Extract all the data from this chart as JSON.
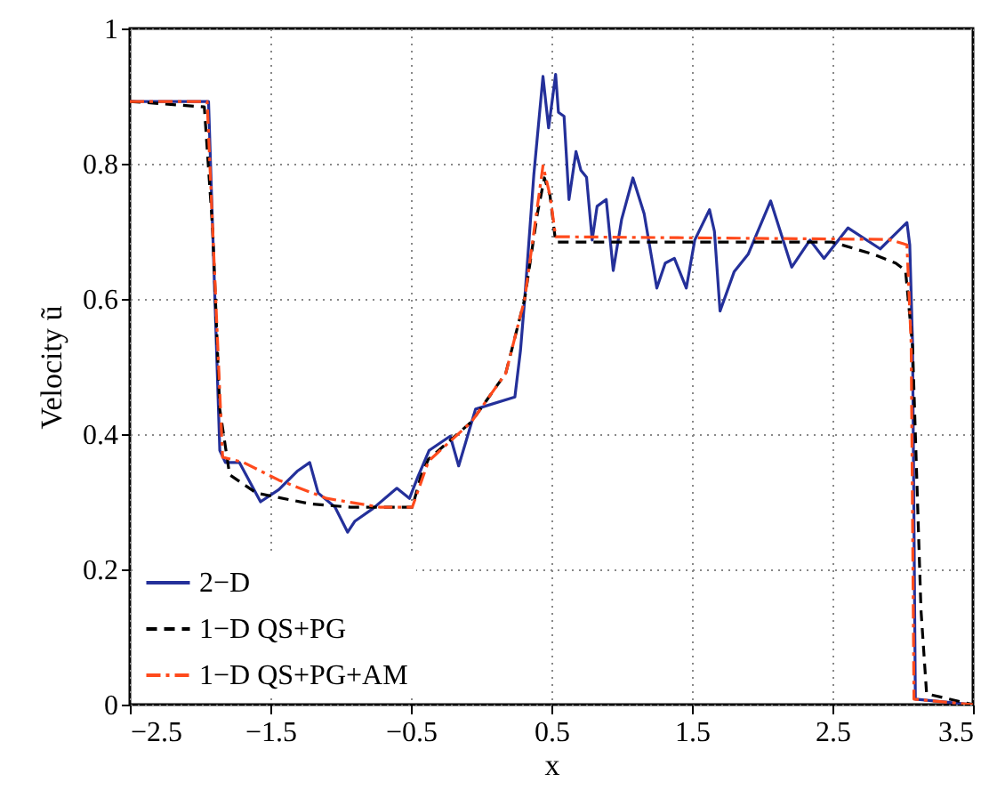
{
  "chart_data": {
    "type": "line",
    "xlabel": "x",
    "ylabel": "Velocity ũ",
    "xlim": [
      -2.5,
      3.5
    ],
    "ylim": [
      0,
      1
    ],
    "xticks": [
      {
        "value": -2.5,
        "label": "−2.5"
      },
      {
        "value": -1.5,
        "label": "−1.5"
      },
      {
        "value": -0.5,
        "label": "−0.5"
      },
      0.5,
      1.5,
      2.5,
      3.5
    ],
    "yticks": [
      0,
      0.2,
      0.4,
      0.6,
      0.8,
      1
    ],
    "grid": true,
    "legend": "bottom left",
    "marker": "none",
    "series": [
      {
        "name": "2−D",
        "color": "#24309a",
        "line_style": "solid",
        "x": [
          -2.5,
          -1.94,
          -1.86,
          -1.82,
          -1.72,
          -1.57,
          -1.44,
          -1.31,
          -1.22,
          -1.16,
          -1.04,
          -0.95,
          -0.9,
          -0.77,
          -0.6,
          -0.51,
          -0.45,
          -0.37,
          -0.22,
          -0.16,
          -0.07,
          -0.04,
          0.24,
          0.28,
          0.31,
          0.375,
          0.44,
          0.48,
          0.53,
          0.55,
          0.59,
          0.625,
          0.675,
          0.71,
          0.75,
          0.79,
          0.825,
          0.89,
          0.94,
          1.0,
          1.08,
          1.16,
          1.25,
          1.31,
          1.375,
          1.46,
          1.52,
          1.625,
          1.66,
          1.7,
          1.8,
          1.9,
          2.06,
          2.21,
          2.34,
          2.44,
          2.61,
          2.84,
          3.03,
          3.05,
          3.07,
          3.09,
          3.5
        ],
        "values": [
          0.892,
          0.892,
          0.376,
          0.358,
          0.358,
          0.3,
          0.318,
          0.345,
          0.358,
          0.313,
          0.292,
          0.255,
          0.271,
          0.29,
          0.32,
          0.305,
          0.337,
          0.376,
          0.397,
          0.353,
          0.416,
          0.437,
          0.455,
          0.524,
          0.6,
          0.784,
          0.929,
          0.853,
          0.932,
          0.876,
          0.87,
          0.747,
          0.818,
          0.79,
          0.78,
          0.687,
          0.737,
          0.747,
          0.642,
          0.718,
          0.779,
          0.726,
          0.616,
          0.653,
          0.66,
          0.616,
          0.687,
          0.732,
          0.7,
          0.582,
          0.64,
          0.666,
          0.745,
          0.647,
          0.687,
          0.66,
          0.705,
          0.674,
          0.713,
          0.68,
          0.534,
          0.008,
          0
        ]
      },
      {
        "name": "1−D QS+PG",
        "color": "#000000",
        "line_style": "dashed",
        "x": [
          -2.5,
          -1.97,
          -1.91,
          -1.86,
          -1.79,
          -1.6,
          -1.22,
          -0.93,
          -0.49,
          -0.43,
          -0.375,
          -0.07,
          0.175,
          0.31,
          0.4,
          0.45,
          0.49,
          0.53,
          2.5,
          2.79,
          2.95,
          3.02,
          3.07,
          3.13,
          3.17,
          3.5
        ],
        "values": [
          0.892,
          0.884,
          0.7,
          0.437,
          0.34,
          0.313,
          0.297,
          0.292,
          0.292,
          0.337,
          0.363,
          0.418,
          0.49,
          0.6,
          0.726,
          0.779,
          0.753,
          0.684,
          0.684,
          0.666,
          0.653,
          0.642,
          0.53,
          0.14,
          0.016,
          0
        ]
      },
      {
        "name": "1−D QS+PG+AM",
        "color": "#ff4a1c",
        "line_style": "dashdot",
        "x": [
          -2.5,
          -1.95,
          -1.84,
          -1.69,
          -1.44,
          -1.1,
          -0.72,
          -0.49,
          -0.375,
          -0.07,
          0.175,
          0.31,
          0.44,
          0.49,
          0.53,
          2.9,
          3.03,
          3.06,
          3.08,
          3.5
        ],
        "values": [
          0.892,
          0.892,
          0.366,
          0.358,
          0.332,
          0.305,
          0.292,
          0.292,
          0.36,
          0.418,
          0.49,
          0.6,
          0.797,
          0.753,
          0.692,
          0.688,
          0.68,
          0.534,
          0.008,
          0
        ]
      }
    ]
  }
}
